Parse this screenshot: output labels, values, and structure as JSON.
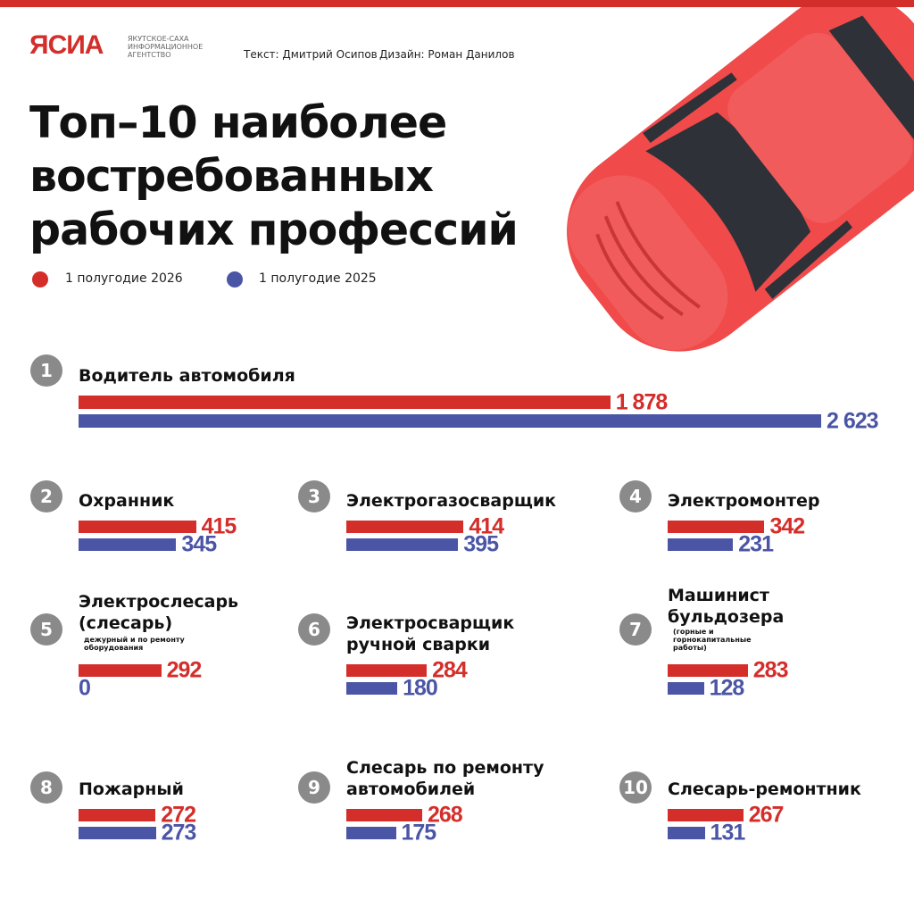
{
  "header": {
    "logo": "ЯСИА",
    "agency": "ЯКУТСКОЕ-САХА ИНФОРМАЦИОННОЕ АГЕНТСТВО",
    "text_credit": "Текст: Дмитрий Осипов",
    "design_credit": "Дизайн: Роман Данилов"
  },
  "chart_data": {
    "type": "bar",
    "orientation": "horizontal",
    "title": "Топ–10 наиболее востребованных рабочих профессий",
    "ranks": [
      "1",
      "2",
      "3",
      "4",
      "5",
      "6",
      "7",
      "8",
      "9",
      "10"
    ],
    "categories": [
      "Водитель автомобиля",
      "Охранник",
      "Электрогазосварщик",
      "Электромонтер",
      "Электрослесарь (слесарь)",
      "Электросварщик ручной сварки",
      "Машинист бульдозера",
      "Пожарный",
      "Слесарь по ремонту автомобилей",
      "Слесарь-ремонтник"
    ],
    "notes": {
      "4": "дежурный и по ремонту оборудования",
      "6": "(горные и горнокапитальные работы)"
    },
    "series": [
      {
        "name": "1 полугодие 2026",
        "color": "#d42e2b",
        "values": [
          1878,
          415,
          414,
          342,
          292,
          284,
          283,
          272,
          268,
          267
        ],
        "value_labels": [
          "1 878",
          "415",
          "414",
          "342",
          "292",
          "284",
          "283",
          "272",
          "268",
          "267"
        ]
      },
      {
        "name": "1 полугодие 2025",
        "color": "#4b55a5",
        "values": [
          2623,
          345,
          395,
          231,
          0,
          180,
          128,
          273,
          175,
          131
        ],
        "value_labels": [
          "2 623",
          "345",
          "395",
          "231",
          "0",
          "180",
          "128",
          "273",
          "175",
          "131"
        ]
      }
    ]
  }
}
